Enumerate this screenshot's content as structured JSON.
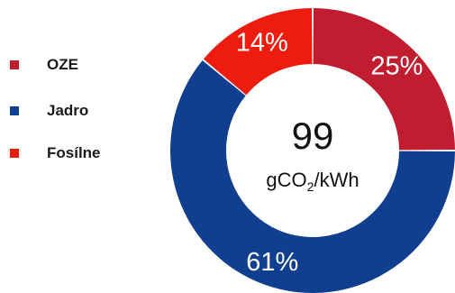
{
  "chart_data": {
    "type": "pie",
    "variant": "donut",
    "title": "",
    "categories": [
      "OZE",
      "Jadro",
      "Fosílne"
    ],
    "values": [
      25,
      61,
      14
    ],
    "value_labels": [
      "25%",
      "61%",
      "14%"
    ],
    "colors": [
      "#c01e30",
      "#103f8f",
      "#ee1c0f"
    ],
    "start": "12 o'clock",
    "direction": "clockwise",
    "legend_position": "left",
    "center_value": "99",
    "center_unit": {
      "base": "gCO",
      "subscript": "2",
      "suffix": "/kWh"
    }
  },
  "legend": {
    "items": [
      {
        "label": "OZE",
        "color": "#c01e30"
      },
      {
        "label": "Jadro",
        "color": "#103f8f"
      },
      {
        "label": "Fosílne",
        "color": "#ee1c0f"
      }
    ]
  }
}
